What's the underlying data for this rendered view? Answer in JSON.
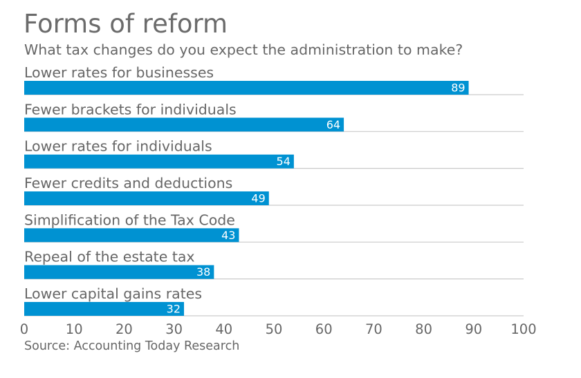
{
  "title": "Forms of reform",
  "subtitle": "What tax changes do you expect the administration to make?",
  "source": "Source: Accounting Today Research",
  "colors": {
    "bar": "#0092d2",
    "axis": "#c9c9c9",
    "text": "#666666",
    "bar_label": "#ffffff"
  },
  "chart_data": {
    "type": "bar",
    "orientation": "horizontal",
    "title": "Forms of reform",
    "subtitle": "What tax changes do you expect the administration to make?",
    "categories": [
      "Lower rates for businesses",
      "Fewer brackets for individuals",
      "Lower rates for individuals",
      "Fewer credits and deductions",
      "Simplification of the Tax Code",
      "Repeal of the estate tax",
      "Lower capital gains rates"
    ],
    "values": [
      89,
      64,
      54,
      49,
      43,
      38,
      32
    ],
    "xlim": [
      0,
      100
    ],
    "xticks": [
      0,
      10,
      20,
      30,
      40,
      50,
      60,
      70,
      80,
      90,
      100
    ],
    "xlabel": "",
    "ylabel": "",
    "grid": false,
    "data_labels": true
  }
}
